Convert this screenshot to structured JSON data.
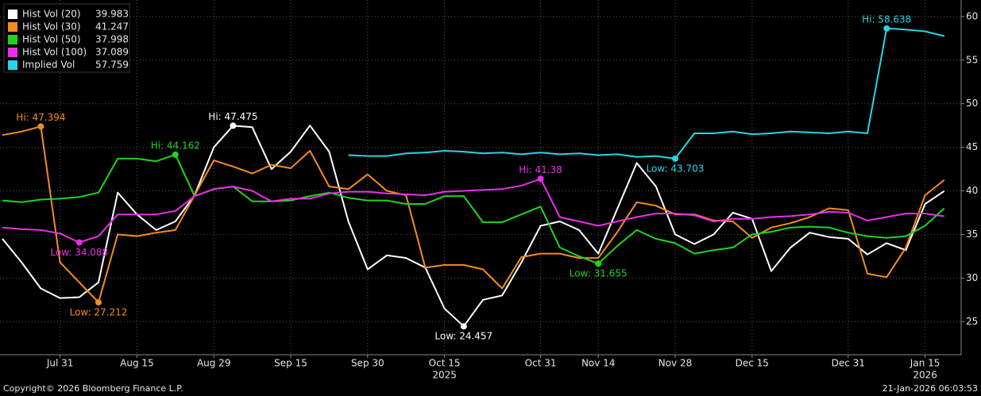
{
  "chart_data": {
    "type": "line",
    "categories": [
      null,
      null,
      null,
      "Jul 31",
      null,
      null,
      null,
      "Aug 15",
      null,
      null,
      null,
      "Aug 29",
      null,
      null,
      null,
      "Sep 15",
      null,
      null,
      null,
      "Sep 30",
      null,
      null,
      null,
      "Oct 15",
      null,
      null,
      null,
      null,
      "Oct 31",
      null,
      null,
      "Nov 14",
      null,
      null,
      null,
      "Nov 28",
      null,
      null,
      null,
      "Dec 15",
      null,
      null,
      null,
      null,
      "Dec 31",
      null,
      null,
      null,
      "Jan 15",
      null
    ],
    "year_labels": [
      "2025",
      "2026"
    ],
    "ylim": [
      21.2,
      61.9
    ],
    "yticks": [
      25,
      30,
      35,
      40,
      45,
      50,
      55,
      60
    ],
    "grid": true,
    "legend": "top-left",
    "series": [
      {
        "name": "Hist Vol (20)",
        "color": "#ffffff",
        "values": [
          34.5,
          31.8,
          28.8,
          27.7,
          27.8,
          29.5,
          39.8,
          37.3,
          35.5,
          36.5,
          39.5,
          45,
          47.475,
          47.3,
          42.5,
          44.5,
          47.5,
          44.5,
          36.5,
          31,
          32.6,
          32.3,
          31.2,
          26.5,
          24.457,
          27.5,
          28,
          31.8,
          36,
          36.5,
          35.5,
          32.8,
          38,
          43.2,
          40.5,
          35,
          33.9,
          35,
          37.5,
          36.8,
          30.8,
          33.5,
          35.2,
          34.7,
          34.5,
          32.7,
          34,
          33.2,
          38.5,
          39.983
        ]
      },
      {
        "name": "Hist Vol (30)",
        "color": "#f68b1f",
        "values": [
          46.4,
          46.8,
          47.394,
          31.8,
          29.5,
          27.212,
          35,
          34.8,
          35.2,
          35.5,
          39.5,
          43.5,
          42.8,
          42,
          43,
          42.6,
          44.6,
          40.5,
          40.2,
          41.9,
          40,
          39.5,
          31.2,
          31.5,
          31.5,
          31,
          28.8,
          32.4,
          32.8,
          32.8,
          32.3,
          32.3,
          35.3,
          38.7,
          38.3,
          37.3,
          37.3,
          36.6,
          36.5,
          34.6,
          35.8,
          36.3,
          37,
          38,
          37.8,
          30.5,
          30.1,
          33.5,
          39.5,
          41.247
        ]
      },
      {
        "name": "Hist Vol (50)",
        "color": "#1fd41f",
        "values": [
          38.9,
          38.7,
          39,
          39.1,
          39.3,
          39.8,
          43.7,
          43.7,
          43.4,
          44.162,
          39.4,
          40.2,
          40.5,
          38.8,
          38.8,
          38.9,
          39.4,
          39.8,
          39.2,
          38.9,
          38.9,
          38.5,
          38.5,
          39.4,
          39.4,
          36.4,
          36.4,
          37.3,
          38.2,
          33.5,
          32.5,
          31.655,
          33.7,
          35.5,
          34.5,
          34,
          32.8,
          33.2,
          33.5,
          35,
          35.3,
          35.8,
          35.9,
          35.8,
          35.2,
          34.8,
          34.6,
          34.8,
          36,
          37.998
        ]
      },
      {
        "name": "Hist Vol (100)",
        "color": "#e830e8",
        "values": [
          35.8,
          35.6,
          35.5,
          35.1,
          34.088,
          34.8,
          37.3,
          37.3,
          37.3,
          37.7,
          39.4,
          40.2,
          40.5,
          40,
          38.8,
          39.1,
          39.1,
          39.7,
          39.9,
          39.9,
          39.7,
          39.6,
          39.5,
          39.9,
          40,
          40.1,
          40.2,
          40.6,
          41.38,
          37,
          36.5,
          36,
          36.5,
          37,
          37.4,
          37.4,
          37.2,
          36.5,
          36.8,
          36.8,
          37,
          37.1,
          37.3,
          37.6,
          37.5,
          36.6,
          37,
          37.4,
          37.4,
          37.089
        ]
      },
      {
        "name": "Implied Vol",
        "color": "#27d6e6",
        "values": [
          null,
          null,
          null,
          null,
          null,
          null,
          null,
          null,
          null,
          null,
          null,
          null,
          null,
          null,
          null,
          null,
          null,
          null,
          44.1,
          44,
          44,
          44.3,
          44.4,
          44.6,
          44.5,
          44.3,
          44.4,
          44.2,
          44.4,
          44.2,
          44.3,
          44.1,
          44.2,
          43.9,
          44,
          43.703,
          46.6,
          46.6,
          46.8,
          46.5,
          46.6,
          46.8,
          46.7,
          46.6,
          46.8,
          46.6,
          58.638,
          58.5,
          58.3,
          57.759
        ]
      }
    ],
    "annotations": [
      {
        "text": "Hi: 47.394",
        "series": 1,
        "index": 2
      },
      {
        "text": "Low: 27.212",
        "series": 1,
        "index": 5
      },
      {
        "text": "Hi: 47.475",
        "series": 0,
        "index": 12
      },
      {
        "text": "Low: 24.457",
        "series": 0,
        "index": 24
      },
      {
        "text": "Hi: 44.162",
        "series": 2,
        "index": 9
      },
      {
        "text": "Low: 31.655",
        "series": 2,
        "index": 31
      },
      {
        "text": "Low: 34.088",
        "series": 3,
        "index": 4
      },
      {
        "text": "Hi: 41.38",
        "series": 3,
        "index": 28
      },
      {
        "text": "Low: 43.703",
        "series": 4,
        "index": 35
      },
      {
        "text": "Hi: 58.638",
        "series": 4,
        "index": 46
      }
    ]
  },
  "footer": {
    "copyright": "Copyright© 2026 Bloomberg Finance L.P.",
    "timestamp": "21-Jan-2026 06:03:53"
  }
}
